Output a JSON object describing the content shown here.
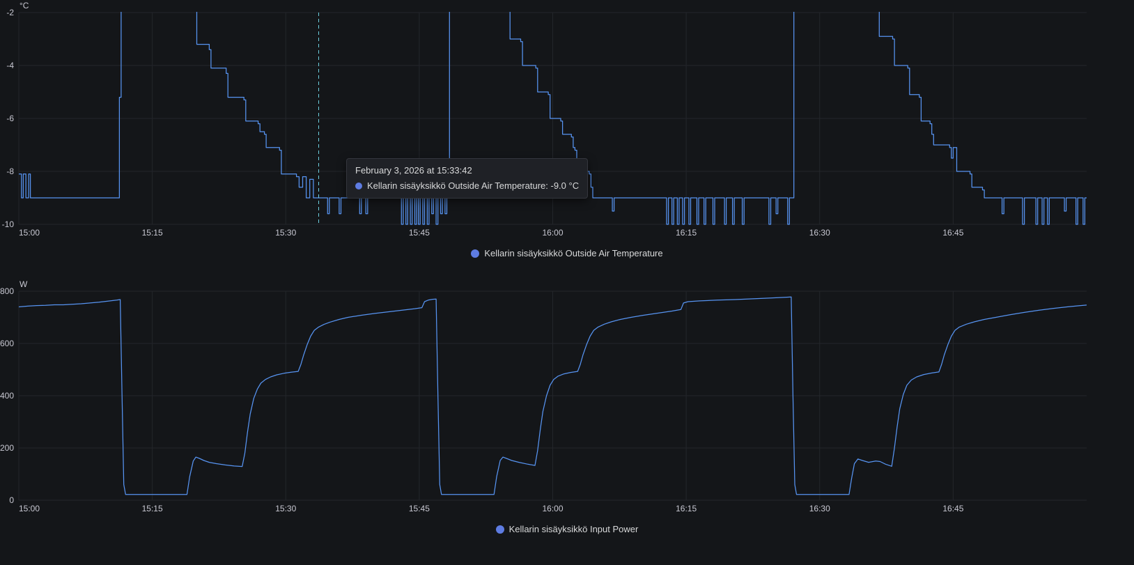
{
  "colors": {
    "background": "#141619",
    "grid": "#23262b",
    "axis_text": "#c8c8d2",
    "series_blue": "#5794f2",
    "legend_dot": "#5e7ce2",
    "cursor": "#6ed0e0",
    "tooltip_bg": "#1f2126",
    "text": "#d8d9da"
  },
  "tooltip": {
    "title": "February 3, 2026 at 15:33:42",
    "series_label": "Kellarin sisäyksikkö Outside Air Temperature:",
    "series_value": "-9.0 °C"
  },
  "chart_data": [
    {
      "type": "line",
      "title": "Kellarin sisäyksikkö Outside Air Temperature",
      "ylabel": "°C",
      "legend": "Kellarin sisäyksikkö Outside Air Temperature",
      "legend_position": "bottom-center",
      "grid": true,
      "interpolation": "step-after",
      "xlim": [
        0,
        120
      ],
      "ylim": [
        -10,
        -2
      ],
      "x_tick_minutes": [
        0,
        15,
        30,
        45,
        60,
        75,
        90,
        105
      ],
      "x_tick_labels": [
        "15:00",
        "15:15",
        "15:30",
        "15:45",
        "16:00",
        "16:15",
        "16:30",
        "16:45"
      ],
      "y_ticks": [
        -2,
        -4,
        -6,
        -8,
        -10
      ],
      "y_tick_labels": [
        "-2",
        "-4",
        "-6",
        "-8",
        "-10"
      ],
      "cursor_minute": 33.7,
      "points": [
        [
          0,
          -8.1
        ],
        [
          0.3,
          -9
        ],
        [
          0.5,
          -8.1
        ],
        [
          0.8,
          -9
        ],
        [
          1.1,
          -8.1
        ],
        [
          1.3,
          -9
        ],
        [
          11.3,
          -5.2
        ],
        [
          11.5,
          -1.5
        ],
        [
          19.9,
          -1.5
        ],
        [
          20.0,
          -3.2
        ],
        [
          21.4,
          -3.4
        ],
        [
          21.6,
          -4.1
        ],
        [
          23.3,
          -4.3
        ],
        [
          23.5,
          -5.2
        ],
        [
          25.3,
          -5.3
        ],
        [
          25.5,
          -6.1
        ],
        [
          26.9,
          -6.2
        ],
        [
          27.1,
          -6.5
        ],
        [
          27.6,
          -6.6
        ],
        [
          27.8,
          -7.1
        ],
        [
          29.3,
          -7.2
        ],
        [
          29.5,
          -8.1
        ],
        [
          31.2,
          -8.2
        ],
        [
          31.5,
          -8.6
        ],
        [
          31.9,
          -8.2
        ],
        [
          32.3,
          -9.0
        ],
        [
          32.7,
          -8.3
        ],
        [
          33.1,
          -9.0
        ],
        [
          34.5,
          -9.0
        ],
        [
          34.7,
          -9.6
        ],
        [
          34.9,
          -9.0
        ],
        [
          36.0,
          -9.6
        ],
        [
          36.2,
          -9.0
        ],
        [
          37.5,
          -9.0
        ],
        [
          38.3,
          -9.6
        ],
        [
          38.5,
          -9.0
        ],
        [
          39.0,
          -9.6
        ],
        [
          39.2,
          -9.0
        ],
        [
          42.8,
          -9.0
        ],
        [
          43.0,
          -10
        ],
        [
          43.2,
          -9
        ],
        [
          43.5,
          -10
        ],
        [
          43.7,
          -9
        ],
        [
          44.0,
          -10
        ],
        [
          44.2,
          -9
        ],
        [
          44.5,
          -10
        ],
        [
          44.7,
          -9
        ],
        [
          44.9,
          -10
        ],
        [
          45.1,
          -9
        ],
        [
          45.4,
          -10
        ],
        [
          45.6,
          -9
        ],
        [
          45.9,
          -10
        ],
        [
          46.1,
          -9
        ],
        [
          46.4,
          -9.6
        ],
        [
          46.6,
          -9
        ],
        [
          46.9,
          -10
        ],
        [
          47.1,
          -9
        ],
        [
          47.4,
          -9.6
        ],
        [
          47.6,
          -9
        ],
        [
          47.9,
          -9.6
        ],
        [
          48.1,
          -9
        ],
        [
          48.4,
          -1.5
        ],
        [
          55.0,
          -1.5
        ],
        [
          55.2,
          -3.0
        ],
        [
          56.4,
          -3.1
        ],
        [
          56.6,
          -4.0
        ],
        [
          58.1,
          -4.1
        ],
        [
          58.3,
          -5.0
        ],
        [
          59.5,
          -5.1
        ],
        [
          59.7,
          -6.0
        ],
        [
          60.9,
          -6.1
        ],
        [
          61.1,
          -6.6
        ],
        [
          62.1,
          -6.7
        ],
        [
          62.3,
          -7.1
        ],
        [
          62.5,
          -7.2
        ],
        [
          62.7,
          -8.0
        ],
        [
          64.1,
          -8.1
        ],
        [
          64.3,
          -8.6
        ],
        [
          64.5,
          -9.0
        ],
        [
          66.5,
          -9.0
        ],
        [
          66.7,
          -9.5
        ],
        [
          66.9,
          -9.0
        ],
        [
          72.6,
          -9.0
        ],
        [
          72.8,
          -10
        ],
        [
          73.0,
          -9
        ],
        [
          73.4,
          -10
        ],
        [
          73.6,
          -9
        ],
        [
          74.0,
          -10
        ],
        [
          74.2,
          -9
        ],
        [
          74.6,
          -10
        ],
        [
          74.8,
          -9
        ],
        [
          75.3,
          -10
        ],
        [
          75.5,
          -9
        ],
        [
          76.2,
          -10
        ],
        [
          76.4,
          -9
        ],
        [
          77.0,
          -10
        ],
        [
          77.2,
          -9
        ],
        [
          78.0,
          -10
        ],
        [
          78.2,
          -9
        ],
        [
          79.3,
          -10
        ],
        [
          79.5,
          -9
        ],
        [
          80.2,
          -10
        ],
        [
          80.4,
          -9
        ],
        [
          81.3,
          -10
        ],
        [
          81.5,
          -9
        ],
        [
          84.3,
          -10
        ],
        [
          84.5,
          -9
        ],
        [
          85.1,
          -9.6
        ],
        [
          85.3,
          -9
        ],
        [
          86.4,
          -10
        ],
        [
          86.6,
          -9
        ],
        [
          86.9,
          -9
        ],
        [
          87.1,
          -1.5
        ],
        [
          96.5,
          -1.5
        ],
        [
          96.7,
          -2.9
        ],
        [
          98.2,
          -3.0
        ],
        [
          98.4,
          -4.0
        ],
        [
          99.9,
          -4.1
        ],
        [
          100.1,
          -5.1
        ],
        [
          101.2,
          -5.2
        ],
        [
          101.4,
          -6.1
        ],
        [
          102.4,
          -6.2
        ],
        [
          102.6,
          -6.6
        ],
        [
          102.8,
          -7.0
        ],
        [
          104.6,
          -7.1
        ],
        [
          104.8,
          -7.5
        ],
        [
          105.0,
          -7.1
        ],
        [
          105.4,
          -8.0
        ],
        [
          106.9,
          -8.1
        ],
        [
          107.1,
          -8.6
        ],
        [
          108.3,
          -8.7
        ],
        [
          108.5,
          -9.0
        ],
        [
          110.3,
          -9.0
        ],
        [
          110.5,
          -9.6
        ],
        [
          110.7,
          -9.0
        ],
        [
          112.8,
          -10
        ],
        [
          113.0,
          -9
        ],
        [
          114.3,
          -10
        ],
        [
          114.5,
          -9
        ],
        [
          115.0,
          -10
        ],
        [
          115.2,
          -9
        ],
        [
          115.6,
          -10
        ],
        [
          115.8,
          -9
        ],
        [
          117.5,
          -9.5
        ],
        [
          117.7,
          -9
        ],
        [
          118.8,
          -10
        ],
        [
          119.0,
          -9
        ],
        [
          119.6,
          -10
        ],
        [
          119.8,
          -9
        ],
        [
          120,
          -9
        ]
      ]
    },
    {
      "type": "line",
      "title": "Kellarin sisäyksikkö Input Power",
      "ylabel": "W",
      "legend": "Kellarin sisäyksikkö Input Power",
      "legend_position": "bottom-center",
      "grid": true,
      "interpolation": "linear",
      "xlim": [
        0,
        120
      ],
      "ylim": [
        0,
        800
      ],
      "x_tick_minutes": [
        0,
        15,
        30,
        45,
        60,
        75,
        90,
        105
      ],
      "x_tick_labels": [
        "15:00",
        "15:15",
        "15:30",
        "15:45",
        "16:00",
        "16:15",
        "16:30",
        "16:45"
      ],
      "y_ticks": [
        0,
        200,
        400,
        600,
        800
      ],
      "y_tick_labels": [
        "0",
        "200",
        "400",
        "600",
        "800"
      ],
      "cursor_minute": null,
      "points": [
        [
          0,
          740
        ],
        [
          1,
          743
        ],
        [
          2,
          745
        ],
        [
          3,
          746
        ],
        [
          4,
          748
        ],
        [
          5,
          748
        ],
        [
          6,
          750
        ],
        [
          7,
          752
        ],
        [
          8,
          755
        ],
        [
          9,
          758
        ],
        [
          10,
          762
        ],
        [
          11,
          766
        ],
        [
          11.4,
          768
        ],
        [
          11.6,
          400
        ],
        [
          11.8,
          60
        ],
        [
          12,
          22
        ],
        [
          18.9,
          22
        ],
        [
          19.2,
          90
        ],
        [
          19.6,
          150
        ],
        [
          19.9,
          165
        ],
        [
          20.3,
          160
        ],
        [
          20.8,
          152
        ],
        [
          21.4,
          145
        ],
        [
          22.2,
          140
        ],
        [
          23.2,
          135
        ],
        [
          24.2,
          131
        ],
        [
          25.1,
          129
        ],
        [
          25.4,
          180
        ],
        [
          25.7,
          260
        ],
        [
          26.0,
          330
        ],
        [
          26.4,
          390
        ],
        [
          26.8,
          425
        ],
        [
          27.2,
          448
        ],
        [
          27.7,
          462
        ],
        [
          28.3,
          472
        ],
        [
          29.0,
          480
        ],
        [
          29.8,
          486
        ],
        [
          30.6,
          490
        ],
        [
          31.4,
          493
        ],
        [
          31.7,
          520
        ],
        [
          32.0,
          555
        ],
        [
          32.4,
          595
        ],
        [
          32.8,
          628
        ],
        [
          33.2,
          650
        ],
        [
          33.7,
          663
        ],
        [
          34.3,
          673
        ],
        [
          35.0,
          682
        ],
        [
          36.0,
          692
        ],
        [
          37.0,
          700
        ],
        [
          38.5,
          708
        ],
        [
          40.0,
          715
        ],
        [
          41.5,
          721
        ],
        [
          43.0,
          727
        ],
        [
          44.5,
          733
        ],
        [
          45.3,
          737
        ],
        [
          45.6,
          760
        ],
        [
          46.0,
          766
        ],
        [
          46.5,
          769
        ],
        [
          46.9,
          770
        ],
        [
          47.1,
          400
        ],
        [
          47.3,
          60
        ],
        [
          47.5,
          22
        ],
        [
          53.4,
          22
        ],
        [
          53.7,
          90
        ],
        [
          54.1,
          152
        ],
        [
          54.4,
          165
        ],
        [
          54.8,
          160
        ],
        [
          55.4,
          152
        ],
        [
          56.2,
          145
        ],
        [
          57.2,
          138
        ],
        [
          58.0,
          133
        ],
        [
          58.3,
          190
        ],
        [
          58.6,
          270
        ],
        [
          58.9,
          340
        ],
        [
          59.3,
          400
        ],
        [
          59.7,
          440
        ],
        [
          60.1,
          462
        ],
        [
          60.6,
          475
        ],
        [
          61.2,
          483
        ],
        [
          62.0,
          489
        ],
        [
          62.8,
          493
        ],
        [
          63.1,
          520
        ],
        [
          63.4,
          556
        ],
        [
          63.8,
          595
        ],
        [
          64.2,
          628
        ],
        [
          64.6,
          650
        ],
        [
          65.1,
          663
        ],
        [
          65.8,
          674
        ],
        [
          66.6,
          683
        ],
        [
          67.6,
          692
        ],
        [
          68.8,
          700
        ],
        [
          70.2,
          708
        ],
        [
          71.8,
          716
        ],
        [
          73.4,
          724
        ],
        [
          74.4,
          730
        ],
        [
          74.7,
          755
        ],
        [
          75.2,
          760
        ],
        [
          76.5,
          763
        ],
        [
          78.5,
          766
        ],
        [
          80.5,
          768
        ],
        [
          82.5,
          771
        ],
        [
          84.5,
          774
        ],
        [
          86.3,
          777
        ],
        [
          86.8,
          778
        ],
        [
          87.0,
          400
        ],
        [
          87.2,
          60
        ],
        [
          87.4,
          22
        ],
        [
          93.3,
          22
        ],
        [
          93.6,
          85
        ],
        [
          93.9,
          140
        ],
        [
          94.3,
          158
        ],
        [
          94.8,
          152
        ],
        [
          95.5,
          145
        ],
        [
          96.3,
          150
        ],
        [
          96.8,
          148
        ],
        [
          97.4,
          138
        ],
        [
          98.1,
          130
        ],
        [
          98.4,
          200
        ],
        [
          98.7,
          280
        ],
        [
          99.0,
          350
        ],
        [
          99.4,
          405
        ],
        [
          99.8,
          440
        ],
        [
          100.3,
          460
        ],
        [
          100.9,
          472
        ],
        [
          101.7,
          481
        ],
        [
          102.6,
          487
        ],
        [
          103.4,
          491
        ],
        [
          103.7,
          520
        ],
        [
          104.0,
          556
        ],
        [
          104.4,
          595
        ],
        [
          104.8,
          628
        ],
        [
          105.2,
          650
        ],
        [
          105.7,
          663
        ],
        [
          106.5,
          674
        ],
        [
          107.4,
          683
        ],
        [
          108.5,
          692
        ],
        [
          109.8,
          700
        ],
        [
          111.4,
          710
        ],
        [
          113.0,
          719
        ],
        [
          114.6,
          727
        ],
        [
          116.2,
          734
        ],
        [
          117.8,
          740
        ],
        [
          119.0,
          744
        ],
        [
          120,
          747
        ]
      ]
    }
  ]
}
